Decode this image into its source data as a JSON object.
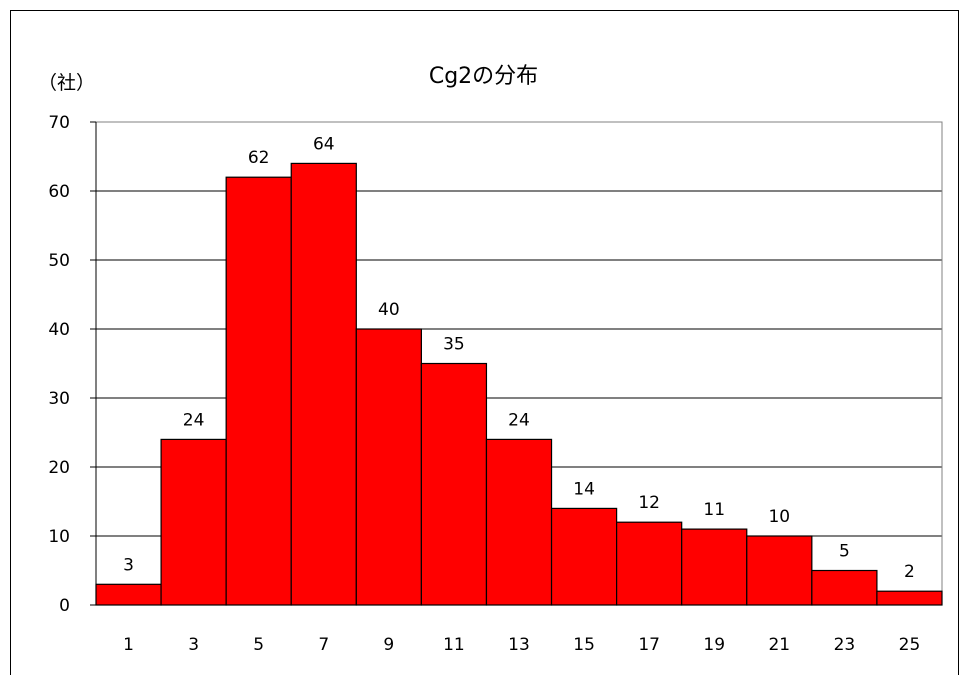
{
  "chart_data": {
    "type": "bar",
    "title": "Cg2の分布",
    "ylabel": "（社）",
    "xlabel": "",
    "categories": [
      "1",
      "3",
      "5",
      "7",
      "9",
      "11",
      "13",
      "15",
      "17",
      "19",
      "21",
      "23",
      "25"
    ],
    "values": [
      3,
      24,
      62,
      64,
      40,
      35,
      24,
      14,
      12,
      11,
      10,
      5,
      2
    ],
    "ylim": [
      0,
      70
    ],
    "yticks": [
      0,
      10,
      20,
      30,
      40,
      50,
      60,
      70
    ],
    "grid": true,
    "legend": "none",
    "colors": {
      "bar": "#ff0000",
      "bar_edge": "#000000",
      "grid": "#000000",
      "plot_border": "#808080"
    }
  }
}
